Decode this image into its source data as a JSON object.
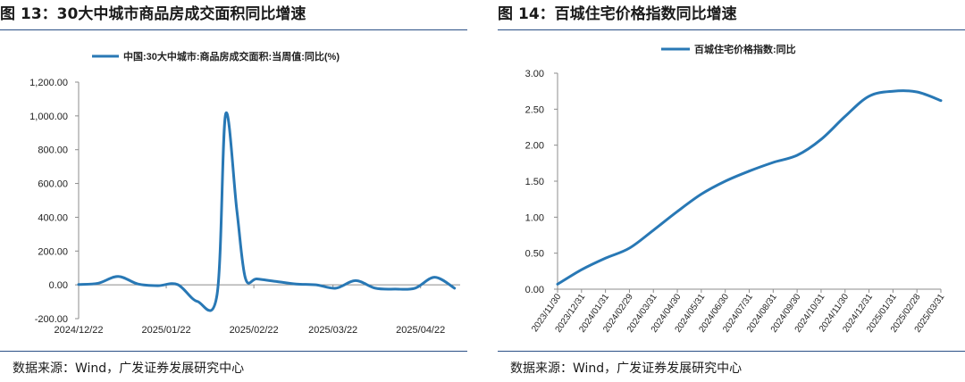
{
  "figures": [
    {
      "label": "图",
      "number": "13：",
      "title": "30大中城市商品房成交面积同比增速",
      "source": "数据来源：Wind，广发证券发展研究中心"
    },
    {
      "label": "图",
      "number": "14：",
      "title": "百城住宅价格指数同比增速",
      "source": "数据来源：Wind，广发证券发展研究中心"
    }
  ],
  "chart_data": [
    {
      "type": "line",
      "legend": "中国:30大中城市:商品房成交面积:当周值:同比(%)",
      "legend_position": "top",
      "color": "#2878b5",
      "ylim": [
        -200,
        1200
      ],
      "yticks": [
        "1,200.00",
        "1,000.00",
        "800.00",
        "600.00",
        "400.00",
        "200.00",
        "0.00",
        "-200.00"
      ],
      "ytick_values": [
        1200,
        1000,
        800,
        600,
        400,
        200,
        0,
        -200
      ],
      "xlim": [
        "2024-12-22",
        "2025-05-06"
      ],
      "xticks": [
        "2024/12/22",
        "2025/01/22",
        "2025/02/22",
        "2025/03/22",
        "2025/04/22"
      ],
      "xtick_dates": [
        "2024-12-22",
        "2025-01-22",
        "2025-02-22",
        "2025-03-22",
        "2025-04-22"
      ],
      "grid": false,
      "series": [
        {
          "x": [
            "2024-12-22",
            "2024-12-29",
            "2025-01-05",
            "2025-01-12",
            "2025-01-19",
            "2025-01-26",
            "2025-02-02",
            "2025-02-09",
            "2025-02-12",
            "2025-02-16",
            "2025-02-19",
            "2025-02-23",
            "2025-03-02",
            "2025-03-09",
            "2025-03-16",
            "2025-03-23",
            "2025-03-30",
            "2025-04-06",
            "2025-04-13",
            "2025-04-20",
            "2025-04-27",
            "2025-05-04"
          ],
          "values": [
            2,
            10,
            50,
            5,
            -5,
            2,
            -98,
            -55,
            1010,
            440,
            40,
            35,
            20,
            5,
            0,
            -20,
            25,
            -20,
            -25,
            -20,
            45,
            -20
          ]
        }
      ]
    },
    {
      "type": "line",
      "legend": "百城住宅价格指数:同比",
      "legend_position": "top",
      "color": "#2878b5",
      "ylim": [
        0,
        3
      ],
      "yticks": [
        "3.00",
        "2.50",
        "2.00",
        "1.50",
        "1.00",
        "0.50",
        "0.00"
      ],
      "ytick_values": [
        3,
        2.5,
        2,
        1.5,
        1,
        0.5,
        0
      ],
      "categories": [
        "2023/11/30",
        "2023/12/31",
        "2024/01/31",
        "2024/02/29",
        "2024/03/31",
        "2024/04/30",
        "2024/05/31",
        "2024/06/30",
        "2024/07/31",
        "2024/08/31",
        "2024/09/30",
        "2024/10/31",
        "2024/11/30",
        "2024/12/31",
        "2025/01/31",
        "2025/02/28",
        "2025/03/31"
      ],
      "grid": false,
      "series": [
        {
          "values": [
            0.07,
            0.27,
            0.43,
            0.57,
            0.82,
            1.08,
            1.32,
            1.5,
            1.64,
            1.76,
            1.86,
            2.08,
            2.4,
            2.68,
            2.75,
            2.74,
            2.62
          ]
        }
      ]
    }
  ]
}
